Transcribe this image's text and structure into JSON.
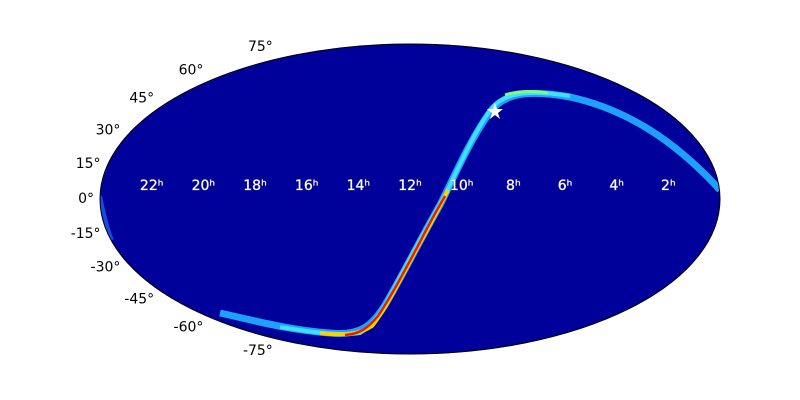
{
  "chart_data": {
    "type": "mollweide",
    "xticks": [
      {
        "value": 22,
        "label": "22ʰ"
      },
      {
        "value": 20,
        "label": "20ʰ"
      },
      {
        "value": 18,
        "label": "18ʰ"
      },
      {
        "value": 16,
        "label": "16ʰ"
      },
      {
        "value": 14,
        "label": "14ʰ"
      },
      {
        "value": 12,
        "label": "12ʰ"
      },
      {
        "value": 10,
        "label": "10ʰ"
      },
      {
        "value": 8,
        "label": "8ʰ"
      },
      {
        "value": 6,
        "label": "6ʰ"
      },
      {
        "value": 4,
        "label": "4ʰ"
      },
      {
        "value": 2,
        "label": "2ʰ"
      }
    ],
    "yticks": [
      {
        "value": 75,
        "label": "75°"
      },
      {
        "value": 60,
        "label": "60°"
      },
      {
        "value": 45,
        "label": "45°"
      },
      {
        "value": 30,
        "label": "30°"
      },
      {
        "value": 15,
        "label": "15°"
      },
      {
        "value": 0,
        "label": "0°"
      },
      {
        "value": -15,
        "label": "-15°"
      },
      {
        "value": -30,
        "label": "-30°"
      },
      {
        "value": -45,
        "label": "-45°"
      },
      {
        "value": -60,
        "label": "-60°"
      },
      {
        "value": -75,
        "label": "-75°"
      }
    ],
    "color": "#00009a"
  }
}
